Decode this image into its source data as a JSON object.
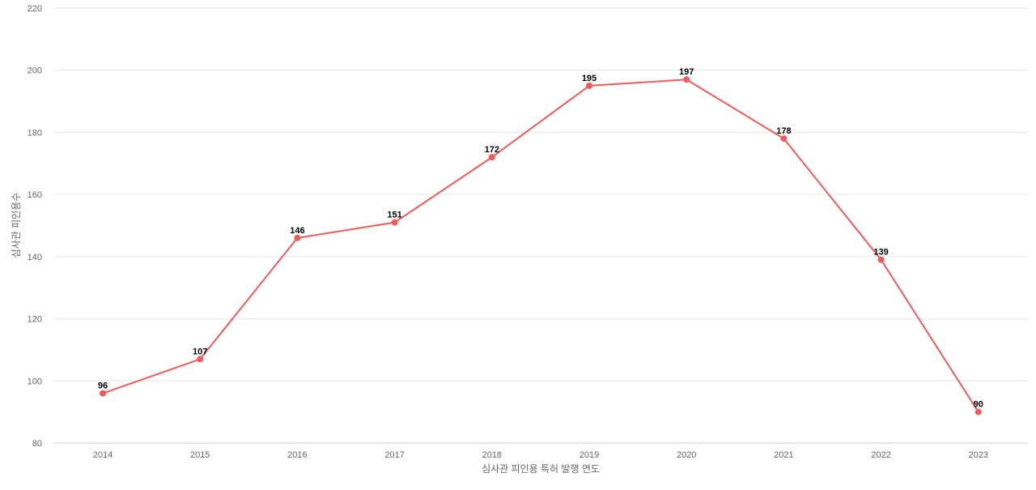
{
  "chart_data": {
    "type": "line",
    "title": "",
    "xlabel": "심사관 피인용 특허 발행 연도",
    "ylabel": "심사관 피인용수",
    "categories": [
      "2014",
      "2015",
      "2016",
      "2017",
      "2018",
      "2019",
      "2020",
      "2021",
      "2022",
      "2023"
    ],
    "series": [
      {
        "name": "",
        "values": [
          96,
          107,
          146,
          151,
          172,
          195,
          197,
          178,
          139,
          90
        ],
        "color": "#f05a5a"
      }
    ],
    "ylim": [
      80,
      220
    ],
    "yticks": [
      80,
      100,
      120,
      140,
      160,
      180,
      200,
      220
    ],
    "grid": true,
    "legend": "none",
    "data_labels": true
  }
}
